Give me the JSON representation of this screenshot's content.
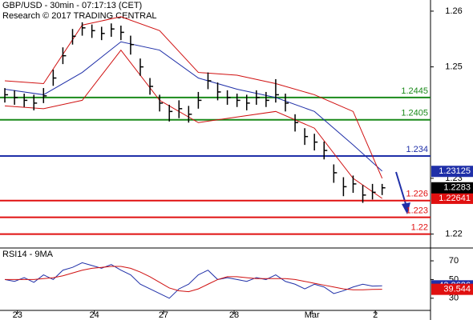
{
  "chart_data": [
    {
      "type": "ohlc",
      "title": "GBP/USD - 30min - 07:17:13 (CET)",
      "subtitle": "Research © 2017 TRADING CENTRAL",
      "ylim": [
        1.2175,
        1.262
      ],
      "yticks": [
        1.22,
        1.23,
        1.25,
        1.26
      ],
      "xlim": [
        -0.5,
        44
      ],
      "xticks": [
        {
          "value": 1.3,
          "label": "23"
        },
        {
          "value": 9.25,
          "label": "24"
        },
        {
          "value": 16.4,
          "label": "27"
        },
        {
          "value": 23.7,
          "label": "28"
        },
        {
          "value": 31.75,
          "label": "Mar"
        },
        {
          "value": 38.3,
          "label": "2"
        }
      ],
      "close": [
        1.245,
        1.2445,
        1.244,
        1.2435,
        1.2448,
        1.248,
        1.252,
        1.2555,
        1.257,
        1.2565,
        1.256,
        1.2568,
        1.2562,
        1.254,
        1.25,
        1.2465,
        1.2435,
        1.242,
        1.2425,
        1.2415,
        1.244,
        1.2475,
        1.2455,
        1.2445,
        1.244,
        1.2435,
        1.2445,
        1.244,
        1.245,
        1.2435,
        1.24,
        1.2375,
        1.2365,
        1.235,
        1.231,
        1.2285,
        1.229,
        1.227,
        1.2275,
        1.2283
      ],
      "high": [
        1.2462,
        1.2458,
        1.2452,
        1.245,
        1.2462,
        1.2495,
        1.2535,
        1.2568,
        1.258,
        1.2576,
        1.2572,
        1.2578,
        1.2574,
        1.2556,
        1.2515,
        1.248,
        1.245,
        1.2432,
        1.244,
        1.243,
        1.2455,
        1.249,
        1.2472,
        1.2458,
        1.2452,
        1.245,
        1.2458,
        1.2455,
        1.2478,
        1.2452,
        1.2415,
        1.239,
        1.238,
        1.2366,
        1.2325,
        1.2302,
        1.2305,
        1.2288,
        1.229,
        1.229
      ],
      "low": [
        1.2436,
        1.2432,
        1.2428,
        1.2422,
        1.2435,
        1.2466,
        1.2505,
        1.254,
        1.2556,
        1.2552,
        1.2548,
        1.2554,
        1.2548,
        1.2522,
        1.2484,
        1.245,
        1.242,
        1.2402,
        1.2408,
        1.24,
        1.2425,
        1.246,
        1.244,
        1.2432,
        1.2428,
        1.2422,
        1.2432,
        1.2428,
        1.2436,
        1.242,
        1.2384,
        1.236,
        1.235,
        1.2334,
        1.2292,
        1.2268,
        1.2274,
        1.2256,
        1.2262,
        1.227
      ],
      "overlay_x": [
        0,
        4,
        8,
        12,
        16,
        20,
        24,
        28,
        32,
        36,
        39
      ],
      "overlays": [
        {
          "color": "#1f2fa8",
          "values": [
            1.246,
            1.245,
            1.249,
            1.2545,
            1.253,
            1.248,
            1.246,
            1.2445,
            1.242,
            1.236,
            1.2313
          ]
        },
        {
          "color": "#d01010",
          "values": [
            1.2475,
            1.247,
            1.2575,
            1.259,
            1.2565,
            1.249,
            1.2485,
            1.247,
            1.245,
            1.242,
            1.23
          ]
        },
        {
          "color": "#d01010",
          "values": [
            1.243,
            1.2425,
            1.244,
            1.253,
            1.244,
            1.24,
            1.241,
            1.242,
            1.239,
            1.23,
            1.2264
          ]
        }
      ],
      "levels": [
        {
          "value": 1.2445,
          "color": "#1a8a1a"
        },
        {
          "value": 1.2405,
          "color": "#1a8a1a"
        },
        {
          "value": 1.234,
          "color": "#1f2fa8"
        },
        {
          "value": 1.226,
          "color": "#e01010"
        },
        {
          "value": 1.223,
          "color": "#e01010"
        },
        {
          "value": 1.22,
          "color": "#e01010"
        }
      ],
      "axis_markers": [
        {
          "value": 1.23125,
          "color": "#1f2fa8"
        },
        {
          "value": 1.22641,
          "color": "#e01010"
        },
        {
          "value": 1.2283,
          "color": "#000000"
        }
      ]
    },
    {
      "type": "line",
      "title": "RSI14 - 9MA",
      "ylim": [
        17,
        82
      ],
      "yticks": [
        30,
        50,
        70
      ],
      "series": [
        {
          "color": "#1f2fa8",
          "values": [
            50,
            48,
            52,
            47,
            55,
            50,
            60,
            63,
            68,
            65,
            62,
            66,
            60,
            55,
            45,
            40,
            35,
            30,
            40,
            45,
            55,
            60,
            50,
            52,
            50,
            48,
            52,
            50,
            55,
            48,
            45,
            40,
            45,
            42,
            35,
            38,
            42,
            45,
            43,
            43.26
          ]
        },
        {
          "color": "#d01010",
          "values": [
            50,
            50,
            50,
            50,
            51,
            52,
            54,
            57,
            60,
            62,
            63,
            64,
            64,
            62,
            58,
            53,
            47,
            41,
            38,
            37,
            40,
            45,
            50,
            53,
            53,
            52,
            51,
            51,
            51,
            51,
            50,
            48,
            46,
            44,
            42,
            40,
            39,
            39,
            39.5,
            39.544
          ]
        }
      ],
      "axis_markers": [
        {
          "value": 43.2626,
          "color": "#1f2fa8"
        },
        {
          "value": 39.544,
          "color": "#e01010"
        }
      ]
    }
  ]
}
